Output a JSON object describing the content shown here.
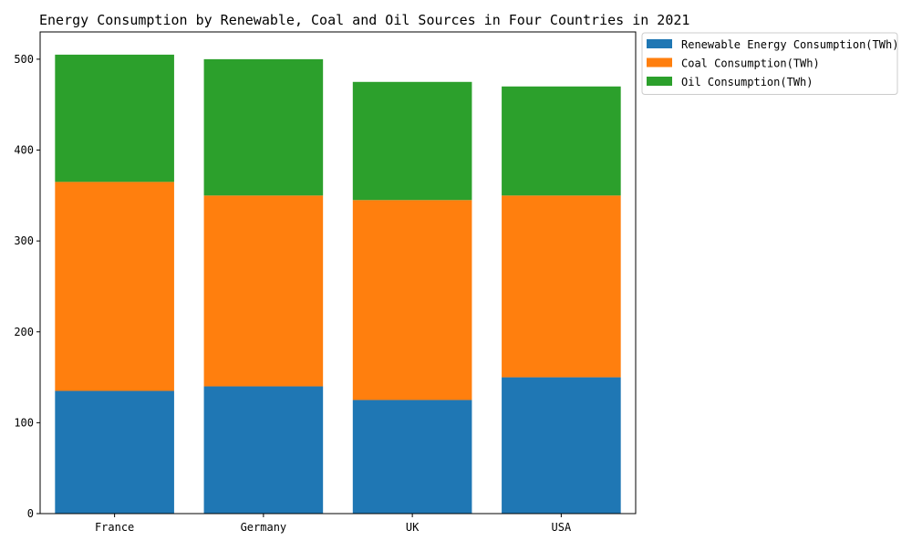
{
  "chart_data": {
    "type": "bar",
    "stacked": true,
    "title": "Energy Consumption by Renewable, Coal and Oil Sources in Four Countries in 2021",
    "xlabel": "",
    "ylabel": "",
    "categories": [
      "France",
      "Germany",
      "UK",
      "USA"
    ],
    "series": [
      {
        "name": "Renewable Energy Consumption(TWh)",
        "values": [
          135,
          140,
          125,
          150
        ],
        "color": "#1f77b4"
      },
      {
        "name": "Coal Consumption(TWh)",
        "values": [
          230,
          210,
          220,
          200
        ],
        "color": "#ff7f0e"
      },
      {
        "name": "Oil Consumption(TWh)",
        "values": [
          140,
          150,
          130,
          120
        ],
        "color": "#2ca02c"
      }
    ],
    "ylim": [
      0,
      530
    ],
    "yticks": [
      0,
      100,
      200,
      300,
      400,
      500
    ],
    "grid": false,
    "legend_position": "outside-top-right"
  }
}
